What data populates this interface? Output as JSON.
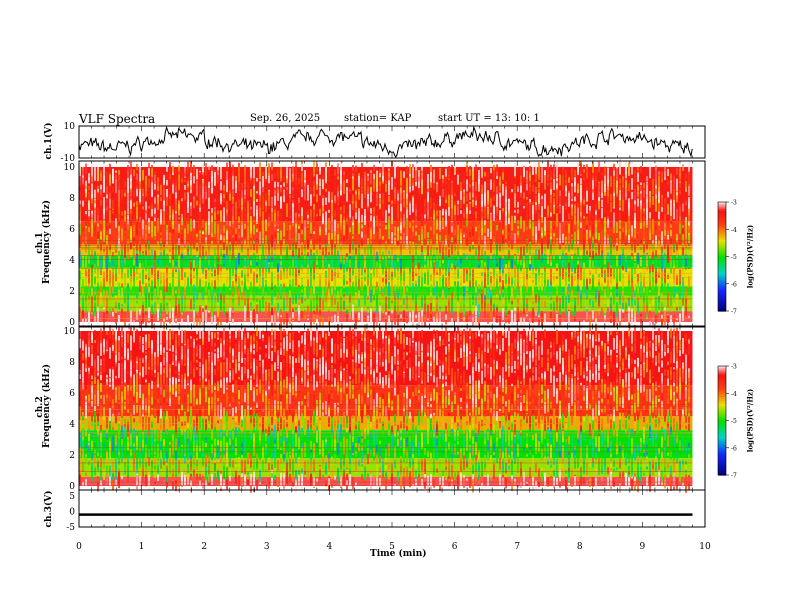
{
  "header": {
    "title": "VLF Spectra",
    "date": "Sep. 26, 2025",
    "station": "station= KAP",
    "start": "start  UT  =    13: 10: 1"
  },
  "chart_data": [
    {
      "type": "line",
      "panel": "ch.1 waveform",
      "ylabel": "ch.1(V)",
      "ylim": [
        -10,
        10
      ],
      "yticks": [
        "10",
        "-10"
      ],
      "xlim": [
        0,
        10
      ],
      "description_values": {
        "mean_level_V": 0,
        "typical_amplitude_V": 4
      }
    },
    {
      "type": "heatmap",
      "panel": "ch.1 spectrogram",
      "ylabel_top": "ch.1",
      "ylabel": "Frequency  (kHz)",
      "ylim": [
        0,
        10
      ],
      "yticks": [
        "0",
        "2",
        "4",
        "6",
        "8",
        "10"
      ],
      "xlim": [
        0,
        9.8
      ],
      "colorbar": {
        "label": "log(PSD)(V²/Hz)",
        "range": [
          -7,
          -3
        ],
        "ticks": [
          "-3",
          "-4",
          "-5",
          "-6",
          "-7"
        ]
      },
      "bands_logpsd": [
        {
          "f_from": 0.0,
          "f_to": 0.7,
          "level": -3.2
        },
        {
          "f_from": 0.7,
          "f_to": 1.7,
          "level": -4.6
        },
        {
          "f_from": 1.7,
          "f_to": 2.3,
          "level": -4.9
        },
        {
          "f_from": 2.3,
          "f_to": 3.5,
          "level": -4.4
        },
        {
          "f_from": 3.5,
          "f_to": 4.3,
          "level": -5.1
        },
        {
          "f_from": 4.3,
          "f_to": 5.0,
          "level": -4.3
        },
        {
          "f_from": 5.0,
          "f_to": 6.5,
          "level": -3.8
        },
        {
          "f_from": 6.5,
          "f_to": 10.0,
          "level": -3.4
        }
      ]
    },
    {
      "type": "heatmap",
      "panel": "ch.2 spectrogram",
      "ylabel_top": "ch.2",
      "ylabel": "Frequency  (kHz)",
      "ylim": [
        0,
        10
      ],
      "yticks": [
        "0",
        "2",
        "4",
        "6",
        "8",
        "10"
      ],
      "xlim": [
        0,
        9.8
      ],
      "colorbar": {
        "label": "log(PSD)(V²/Hz)",
        "range": [
          -7,
          -3
        ],
        "ticks": [
          "-3",
          "-4",
          "-5",
          "-6",
          "-7"
        ]
      },
      "bands_logpsd": [
        {
          "f_from": 0.0,
          "f_to": 0.6,
          "level": -3.2
        },
        {
          "f_from": 0.6,
          "f_to": 1.8,
          "level": -4.6
        },
        {
          "f_from": 1.8,
          "f_to": 3.6,
          "level": -5.0
        },
        {
          "f_from": 3.6,
          "f_to": 4.5,
          "level": -4.2
        },
        {
          "f_from": 4.5,
          "f_to": 6.5,
          "level": -3.7
        },
        {
          "f_from": 6.5,
          "f_to": 10.0,
          "level": -3.3
        }
      ]
    },
    {
      "type": "line",
      "panel": "ch.3 waveform",
      "ylabel": "ch.3(V)",
      "ylim": [
        -5,
        5
      ],
      "yticks": [
        "5",
        "0",
        "-5"
      ],
      "xlim": [
        0,
        10
      ],
      "xlabel": "Time  (min)",
      "xticks": [
        "0",
        "1",
        "2",
        "3",
        "4",
        "5",
        "6",
        "7",
        "8",
        "9",
        "10"
      ],
      "description_values": {
        "mean_level_V": -1,
        "band_halfwidth_V": 0.4
      }
    }
  ],
  "colors": {
    "red": "#ff2a10",
    "yellow": "#e8e000",
    "green": "#00e000",
    "cyan": "#00d8c8",
    "blue": "#1030ff",
    "black": "#000000"
  }
}
